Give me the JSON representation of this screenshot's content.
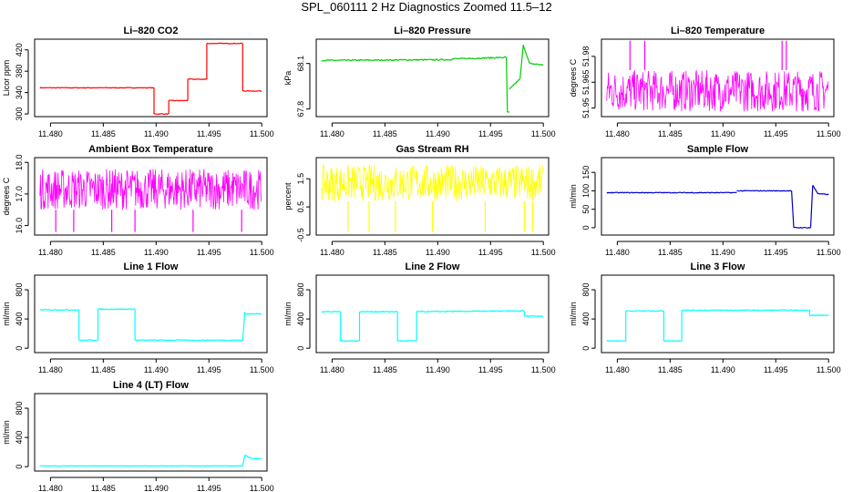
{
  "page_title": "SPL_060111  2 Hz Diagnostics Zoomed 11.5–12",
  "colors": {
    "red": "#ff0000",
    "green": "#00cc00",
    "magenta": "#ff00ff",
    "yellow": "#ffff00",
    "blue": "#0000cc",
    "cyan": "#00ffff"
  },
  "chart_data": [
    {
      "type": "line",
      "title": "Li–820 CO2",
      "ylabel": "Licor ppm",
      "color": "#ff0000",
      "xlim": [
        11.4785,
        11.5005
      ],
      "ylim": [
        295,
        440
      ],
      "xticks": [
        11.48,
        11.485,
        11.49,
        11.495,
        11.5
      ],
      "xtick_labels": [
        "11.480",
        "11.485",
        "11.490",
        "11.495",
        "11.500"
      ],
      "yticks": [
        300,
        340,
        380,
        420
      ],
      "ytick_labels": [
        "300",
        "340",
        "380",
        "420"
      ],
      "noise": 0.6,
      "segments": [
        {
          "x": [
            11.479,
            11.4898
          ],
          "y": [
            349,
            349
          ]
        },
        {
          "x": [
            11.4898,
            11.4898
          ],
          "y": [
            349,
            300
          ]
        },
        {
          "x": [
            11.4898,
            11.4912
          ],
          "y": [
            300,
            300
          ]
        },
        {
          "x": [
            11.4912,
            11.4912
          ],
          "y": [
            300,
            325
          ]
        },
        {
          "x": [
            11.4912,
            11.493
          ],
          "y": [
            325,
            325
          ]
        },
        {
          "x": [
            11.493,
            11.493
          ],
          "y": [
            325,
            365
          ]
        },
        {
          "x": [
            11.493,
            11.4948
          ],
          "y": [
            365,
            365
          ]
        },
        {
          "x": [
            11.4948,
            11.4948
          ],
          "y": [
            365,
            432
          ]
        },
        {
          "x": [
            11.4948,
            11.4982
          ],
          "y": [
            432,
            432
          ]
        },
        {
          "x": [
            11.4982,
            11.4982
          ],
          "y": [
            432,
            343
          ]
        },
        {
          "x": [
            11.4982,
            11.5
          ],
          "y": [
            343,
            343
          ]
        }
      ]
    },
    {
      "type": "line",
      "title": "Li–820 Pressure",
      "ylabel": "kPa",
      "color": "#00cc00",
      "xlim": [
        11.4785,
        11.5005
      ],
      "ylim": [
        67.75,
        68.26
      ],
      "xticks": [
        11.48,
        11.485,
        11.49,
        11.495,
        11.5
      ],
      "xtick_labels": [
        "11.480",
        "11.485",
        "11.490",
        "11.495",
        "11.500"
      ],
      "yticks": [
        67.8,
        68.1
      ],
      "ytick_labels": [
        "67.8",
        "68.1"
      ],
      "noise": 0.004,
      "segments": [
        {
          "x": [
            11.479,
            11.4913
          ],
          "y": [
            68.12,
            68.125
          ]
        },
        {
          "x": [
            11.4913,
            11.4913
          ],
          "y": [
            68.125,
            68.13
          ]
        },
        {
          "x": [
            11.4913,
            11.4965
          ],
          "y": [
            68.13,
            68.14
          ]
        },
        {
          "x": [
            11.4965,
            11.4966
          ],
          "y": [
            68.14,
            67.78
          ]
        },
        {
          "x": [
            11.4966,
            11.4968
          ],
          "y": [
            67.78,
            67.78
          ]
        },
        {
          "x": [
            11.4968,
            11.4978
          ],
          "y": [
            67.93,
            68.0
          ]
        },
        {
          "x": [
            11.4978,
            11.4981
          ],
          "y": [
            68.0,
            68.22
          ]
        },
        {
          "x": [
            11.4981,
            11.4987
          ],
          "y": [
            68.22,
            68.1
          ]
        },
        {
          "x": [
            11.4987,
            11.5
          ],
          "y": [
            68.1,
            68.09
          ]
        }
      ]
    },
    {
      "type": "line",
      "title": "Li–820 Temperature",
      "ylabel": "degrees C",
      "color": "#ff00ff",
      "xlim": [
        11.4785,
        11.5005
      ],
      "ylim": [
        51.945,
        51.99
      ],
      "xticks": [
        11.48,
        11.485,
        11.49,
        11.495,
        11.5
      ],
      "xtick_labels": [
        "11.480",
        "11.485",
        "11.490",
        "11.495",
        "11.500"
      ],
      "yticks": [
        51.95,
        51.965,
        51.98
      ],
      "ytick_labels": [
        "51.95",
        "51.965",
        "51.98"
      ],
      "band": {
        "x": [
          11.479,
          11.5
        ],
        "y": [
          51.948,
          51.972
        ]
      },
      "spikes": [
        11.4812,
        11.4826,
        11.4956,
        11.496
      ]
    },
    {
      "type": "line",
      "title": "Ambient Box Temperature",
      "ylabel": "degrees C",
      "color": "#ff00ff",
      "xlim": [
        11.4785,
        11.5005
      ],
      "ylim": [
        15.7,
        18.15
      ],
      "xticks": [
        11.48,
        11.485,
        11.49,
        11.495,
        11.5
      ],
      "xtick_labels": [
        "11.480",
        "11.485",
        "11.490",
        "11.495",
        "11.500"
      ],
      "yticks": [
        16.0,
        17.0,
        18.0
      ],
      "ytick_labels": [
        "16.0",
        "17.0",
        "18.0"
      ],
      "band": {
        "x": [
          11.479,
          11.5
        ],
        "y": [
          16.5,
          17.8
        ]
      },
      "spikes_low": [
        11.4805,
        11.4822,
        11.4858,
        11.488,
        11.4935,
        11.4981
      ]
    },
    {
      "type": "line",
      "title": "Gas Stream RH",
      "ylabel": "percent",
      "color": "#ffff00",
      "xlim": [
        11.4785,
        11.5005
      ],
      "ylim": [
        -0.5,
        2.25
      ],
      "xticks": [
        11.48,
        11.485,
        11.49,
        11.495,
        11.5
      ],
      "xtick_labels": [
        "11.480",
        "11.485",
        "11.490",
        "11.495",
        "11.500"
      ],
      "yticks": [
        -0.5,
        0.5,
        1.5
      ],
      "ytick_labels": [
        "-0.5",
        "0.5",
        "1.5"
      ],
      "band": {
        "x": [
          11.479,
          11.5
        ],
        "y": [
          0.7,
          2.0
        ]
      },
      "spikes_low": [
        11.4815,
        11.4835,
        11.486,
        11.4895,
        11.4945,
        11.4982,
        11.499
      ]
    },
    {
      "type": "line",
      "title": "Sample Flow",
      "ylabel": "ml/min",
      "color": "#0000cc",
      "xlim": [
        11.4785,
        11.5005
      ],
      "ylim": [
        -20,
        190
      ],
      "xticks": [
        11.48,
        11.485,
        11.49,
        11.495,
        11.5
      ],
      "xtick_labels": [
        "11.480",
        "11.485",
        "11.490",
        "11.495",
        "11.500"
      ],
      "yticks": [
        0,
        50,
        100,
        150
      ],
      "ytick_labels": [
        "0",
        "50",
        "100",
        "150"
      ],
      "noise": 1.0,
      "segments": [
        {
          "x": [
            11.479,
            11.4913
          ],
          "y": [
            95,
            95
          ]
        },
        {
          "x": [
            11.4913,
            11.4965
          ],
          "y": [
            100,
            100
          ]
        },
        {
          "x": [
            11.4965,
            11.4967
          ],
          "y": [
            100,
            0
          ]
        },
        {
          "x": [
            11.4967,
            11.4983
          ],
          "y": [
            0,
            0
          ]
        },
        {
          "x": [
            11.4983,
            11.4985
          ],
          "y": [
            0,
            115
          ]
        },
        {
          "x": [
            11.4985,
            11.499
          ],
          "y": [
            115,
            92
          ]
        },
        {
          "x": [
            11.499,
            11.5
          ],
          "y": [
            92,
            90
          ]
        }
      ]
    },
    {
      "type": "line",
      "title": "Line 1 Flow",
      "ylabel": "ml/min",
      "color": "#00ffff",
      "xlim": [
        11.4785,
        11.5005
      ],
      "ylim": [
        -60,
        1000
      ],
      "xticks": [
        11.48,
        11.485,
        11.49,
        11.495,
        11.5
      ],
      "xtick_labels": [
        "11.480",
        "11.485",
        "11.490",
        "11.495",
        "11.500"
      ],
      "yticks": [
        0,
        400,
        800
      ],
      "ytick_labels": [
        "0",
        "400",
        "800"
      ],
      "noise": 6,
      "segments": [
        {
          "x": [
            11.479,
            11.4827
          ],
          "y": [
            525,
            525
          ]
        },
        {
          "x": [
            11.4827,
            11.4827
          ],
          "y": [
            525,
            110
          ]
        },
        {
          "x": [
            11.4827,
            11.4845
          ],
          "y": [
            110,
            110
          ]
        },
        {
          "x": [
            11.4845,
            11.4845
          ],
          "y": [
            110,
            535
          ]
        },
        {
          "x": [
            11.4845,
            11.488
          ],
          "y": [
            535,
            535
          ]
        },
        {
          "x": [
            11.488,
            11.488
          ],
          "y": [
            535,
            110
          ]
        },
        {
          "x": [
            11.488,
            11.4982
          ],
          "y": [
            110,
            110
          ]
        },
        {
          "x": [
            11.4982,
            11.4984
          ],
          "y": [
            110,
            500
          ]
        },
        {
          "x": [
            11.4984,
            11.5
          ],
          "y": [
            470,
            470
          ]
        }
      ]
    },
    {
      "type": "line",
      "title": "Line 2 Flow",
      "ylabel": "ml/min",
      "color": "#00ffff",
      "xlim": [
        11.4785,
        11.5005
      ],
      "ylim": [
        -60,
        1000
      ],
      "xticks": [
        11.48,
        11.485,
        11.49,
        11.495,
        11.5
      ],
      "xtick_labels": [
        "11.480",
        "11.485",
        "11.490",
        "11.495",
        "11.500"
      ],
      "yticks": [
        0,
        400,
        800
      ],
      "ytick_labels": [
        "0",
        "400",
        "800"
      ],
      "noise": 6,
      "segments": [
        {
          "x": [
            11.479,
            11.4808
          ],
          "y": [
            500,
            500
          ]
        },
        {
          "x": [
            11.4808,
            11.4808
          ],
          "y": [
            500,
            100
          ]
        },
        {
          "x": [
            11.4808,
            11.4826
          ],
          "y": [
            100,
            100
          ]
        },
        {
          "x": [
            11.4826,
            11.4826
          ],
          "y": [
            100,
            500
          ]
        },
        {
          "x": [
            11.4826,
            11.4862
          ],
          "y": [
            500,
            500
          ]
        },
        {
          "x": [
            11.4862,
            11.4862
          ],
          "y": [
            500,
            100
          ]
        },
        {
          "x": [
            11.4862,
            11.488
          ],
          "y": [
            100,
            100
          ]
        },
        {
          "x": [
            11.488,
            11.488
          ],
          "y": [
            100,
            500
          ]
        },
        {
          "x": [
            11.488,
            11.4982
          ],
          "y": [
            500,
            510
          ]
        },
        {
          "x": [
            11.4982,
            11.4982
          ],
          "y": [
            510,
            440
          ]
        },
        {
          "x": [
            11.4982,
            11.5
          ],
          "y": [
            440,
            440
          ]
        }
      ]
    },
    {
      "type": "line",
      "title": "Line 3 Flow",
      "ylabel": "ml/min",
      "color": "#00ffff",
      "xlim": [
        11.4785,
        11.5005
      ],
      "ylim": [
        -60,
        1000
      ],
      "xticks": [
        11.48,
        11.485,
        11.49,
        11.495,
        11.5
      ],
      "xtick_labels": [
        "11.480",
        "11.485",
        "11.490",
        "11.495",
        "11.500"
      ],
      "yticks": [
        0,
        400,
        800
      ],
      "ytick_labels": [
        "0",
        "400",
        "800"
      ],
      "noise": 6,
      "segments": [
        {
          "x": [
            11.479,
            11.4808
          ],
          "y": [
            100,
            100
          ]
        },
        {
          "x": [
            11.4808,
            11.4808
          ],
          "y": [
            100,
            510
          ]
        },
        {
          "x": [
            11.4808,
            11.4844
          ],
          "y": [
            510,
            510
          ]
        },
        {
          "x": [
            11.4844,
            11.4844
          ],
          "y": [
            510,
            100
          ]
        },
        {
          "x": [
            11.4844,
            11.4861
          ],
          "y": [
            100,
            100
          ]
        },
        {
          "x": [
            11.4861,
            11.4861
          ],
          "y": [
            100,
            520
          ]
        },
        {
          "x": [
            11.4861,
            11.4982
          ],
          "y": [
            520,
            520
          ]
        },
        {
          "x": [
            11.4982,
            11.4982
          ],
          "y": [
            520,
            450
          ]
        },
        {
          "x": [
            11.4982,
            11.5
          ],
          "y": [
            450,
            450
          ]
        }
      ]
    },
    {
      "type": "line",
      "title": "Line 4 (LT) Flow",
      "ylabel": "ml/min",
      "color": "#00ffff",
      "xlim": [
        11.4785,
        11.5005
      ],
      "ylim": [
        -60,
        1000
      ],
      "xticks": [
        11.48,
        11.485,
        11.49,
        11.495,
        11.5
      ],
      "xtick_labels": [
        "11.480",
        "11.485",
        "11.490",
        "11.495",
        "11.500"
      ],
      "yticks": [
        0,
        400,
        800
      ],
      "ytick_labels": [
        "0",
        "400",
        "800"
      ],
      "noise": 3,
      "segments": [
        {
          "x": [
            11.479,
            11.4982
          ],
          "y": [
            10,
            10
          ]
        },
        {
          "x": [
            11.4982,
            11.4984
          ],
          "y": [
            10,
            160
          ]
        },
        {
          "x": [
            11.4984,
            11.499
          ],
          "y": [
            160,
            110
          ]
        },
        {
          "x": [
            11.499,
            11.5
          ],
          "y": [
            110,
            110
          ]
        }
      ]
    }
  ]
}
